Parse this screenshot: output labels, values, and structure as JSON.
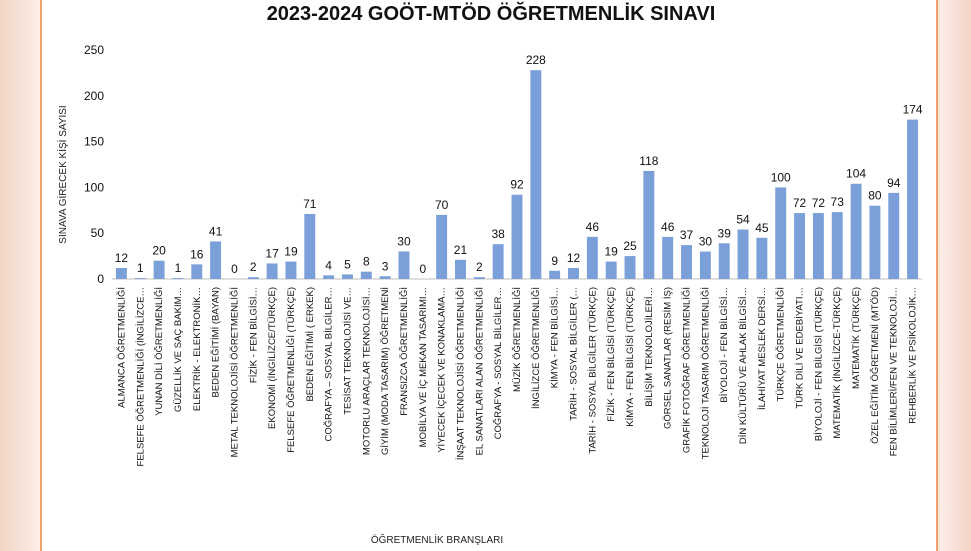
{
  "chart_data": {
    "type": "bar",
    "title": "2023-2024 GOÖT-MTÖD ÖĞRETMENLİK SINAVI",
    "xlabel": "ÖĞRETMENLİK BRANŞLARI",
    "ylabel": "SINAVA GİRECEK KİŞİ SAYISI",
    "ylim": [
      0,
      250
    ],
    "yticks": [
      0,
      50,
      100,
      150,
      200,
      250
    ],
    "grid": false,
    "legend": "none",
    "bar_color": "#7a9fd9",
    "categories": [
      "ALMANCA ÖĞRETMENLİĞİ",
      "FELSEFE ÖĞRETMENLİĞİ (İNGİLİZCE…",
      "YUNAN DİLİ ÖĞRETMENLİĞİ",
      "GÜZELLİK VE SAÇ BAKIM…",
      "ELEKTRİK - ELEKTRONİK…",
      "BEDEN EĞİTİMİ (BAYAN)",
      "METAL TEKNOLOJİSİ ÖĞRETMENLİĞİ",
      "FİZİK - FEN BİLGİSİ…",
      "EKONOMİ (İNGİLİZCE/TÜRKÇE)",
      "FELSEFE ÖĞRETMENLİĞİ (TÜRKÇE)",
      "BEDEN EĞİTİMİ ( ERKEK)",
      "COĞRAFYA – SOSYAL BİLGİLER…",
      "TESİSAT TEKNOLOJİSİ VE…",
      "MOTORLU ARAÇLAR TEKNOLOJİSİ…",
      "GİYİM (MODA TASARIM) ÖĞRETMENİ",
      "FRANSIZCA ÖĞRETMENLİĞİ",
      "MOBİLYA VE İÇ MEKAN TASARIMI…",
      "YİYECEK İÇECEK VE KONAKLAMA…",
      "İNŞAAT TEKNOLOJİSİ ÖĞRETMENLİĞİ",
      "EL SANATLARI ALAN ÖĞRETMENLİĞİ",
      "COĞRAFYA - SOSYAL BİLGİLER…",
      "MÜZİK ÖĞRETMENLİĞİ",
      "İNGİLİZCE ÖĞRETMENLİĞİ",
      "KİMYA - FEN BİLGİSİ…",
      "TARİH - SOSYAL BİLGİLER (…",
      "TARİH - SOSYAL BİLGİLER (TÜRKÇE)",
      "FİZİK - FEN BİLGİSİ (TÜRKÇE)",
      "KİMYA - FEN BİLGİSİ (TÜRKÇE)",
      "BİLİŞİM TEKNOLOJİLERİ…",
      "GÖRSEL SANATLAR (RESİM İŞ)",
      "GRAFİK FOTOĞRAF ÖĞRETMENLİĞİ",
      "TEKNOLOJİ TASARIM ÖĞRETMENLİĞİ",
      "BİYOLOJİ - FEN BİLGİSİ…",
      "DİN KÜLTÜRÜ VE AHLAK BİLGİSİ…",
      "İLAHİYAT MESLEK DERSİ…",
      "TÜRKÇE ÖĞRETMENLİĞİ",
      "TÜRK DİLİ VE EDEBİYATI…",
      "BİYOLOJİ - FEN BİLGİSİ (TÜRKÇE)",
      "MATEMATİK (İNGİLİZCE-TÜRKÇE)",
      "MATEMATİK (TÜRKÇE)",
      "ÖZEL EĞİTİM ÖĞRETMENİ (MTÖD)",
      "FEN BİLİMLERİ/FEN VE TEKNOLOJİ…",
      "REHBERLİK VE PSİKOLOJİK…"
    ],
    "values": [
      12,
      1,
      20,
      1,
      16,
      41,
      0,
      2,
      17,
      19,
      71,
      4,
      5,
      8,
      3,
      30,
      0,
      70,
      21,
      2,
      38,
      92,
      228,
      9,
      12,
      46,
      19,
      25,
      118,
      46,
      37,
      30,
      39,
      54,
      45,
      100,
      72,
      72,
      73,
      104,
      80,
      94,
      174
    ]
  }
}
